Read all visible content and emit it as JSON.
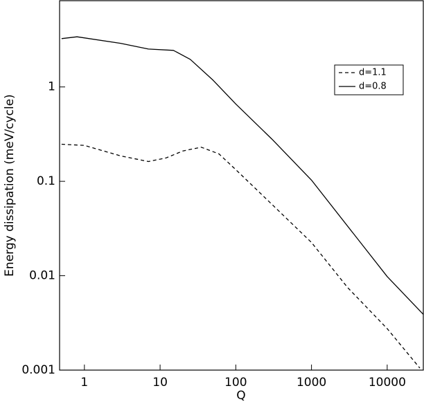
{
  "chart_data": {
    "type": "line",
    "xlabel": "Q",
    "ylabel": "Energy dissipation (meV/cycle)",
    "xscale": "log",
    "yscale": "log",
    "xlim": [
      0.47,
      30000
    ],
    "ylim": [
      0.001,
      8.2
    ],
    "xticks": [
      1,
      10,
      100,
      1000,
      10000
    ],
    "yticks": [
      0.001,
      0.01,
      0.1,
      1
    ],
    "legend_position": "upper right",
    "series": [
      {
        "name": "d=1.1",
        "color": "#000000",
        "dash": "dashed",
        "x": [
          0.5,
          1,
          3,
          7,
          12,
          20,
          35,
          60,
          100,
          300,
          1000,
          3000,
          10000,
          27000
        ],
        "values": [
          0.247,
          0.24,
          0.186,
          0.162,
          0.177,
          0.21,
          0.23,
          0.195,
          0.133,
          0.057,
          0.0225,
          0.0075,
          0.00275,
          0.00105
        ]
      },
      {
        "name": "d=0.8",
        "color": "#000000",
        "dash": "solid",
        "x": [
          0.5,
          0.8,
          3,
          7,
          15,
          25,
          50,
          100,
          300,
          1000,
          10000,
          30000
        ],
        "values": [
          3.25,
          3.4,
          2.9,
          2.52,
          2.44,
          1.96,
          1.18,
          0.66,
          0.28,
          0.103,
          0.0098,
          0.0039
        ]
      }
    ]
  }
}
